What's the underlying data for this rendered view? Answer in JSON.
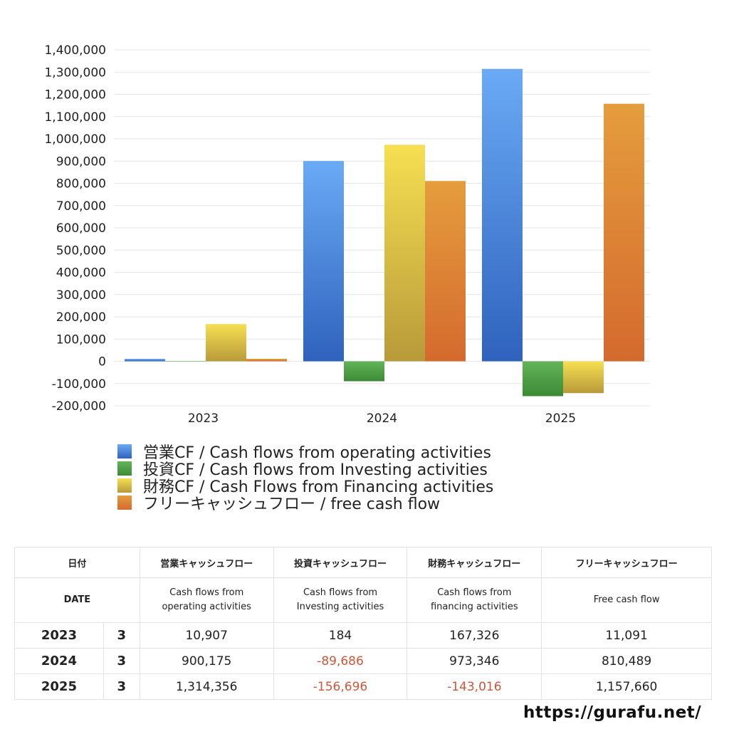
{
  "chart_data": {
    "type": "bar",
    "categories": [
      "2023",
      "2024",
      "2025"
    ],
    "ylim": [
      -200000,
      1400000
    ],
    "yticks": [
      "1,400,000",
      "1,300,000",
      "1,200,000",
      "1,100,000",
      "1,000,000",
      "900,000",
      "800,000",
      "700,000",
      "600,000",
      "500,000",
      "400,000",
      "300,000",
      "200,000",
      "100,000",
      "0",
      "-100,000",
      "-200,000"
    ],
    "series": [
      {
        "name": "営業CF / Cash flows from operating activities",
        "values": [
          10907,
          900175,
          1314356
        ],
        "color_top": "#6aaaf5",
        "color_bottom": "#2f62bd"
      },
      {
        "name": "投資CF / Cash flows from Investing activities",
        "values": [
          184,
          -89686,
          -156696
        ],
        "color_top": "#62b45a",
        "color_bottom": "#3d8a36"
      },
      {
        "name": "財務CF / Cash Flows from Financing activities",
        "values": [
          167326,
          973346,
          -143016
        ],
        "color_top": "#f7df52",
        "color_bottom": "#b89a3a"
      },
      {
        "name": "フリーキャッシュフロー / free cash flow",
        "values": [
          11091,
          810489,
          1157660
        ],
        "color_top": "#e59d3d",
        "color_bottom": "#d46a2e"
      }
    ],
    "grid": true,
    "legend": "bottom"
  },
  "table": {
    "header_jp": [
      "日付",
      "営業キャッシュフロー",
      "投資キャッシュフロー",
      "財務キャッシュフロー",
      "フリーキャッシュフロー"
    ],
    "header_en": [
      "DATE",
      "Cash flows from operating activities",
      "Cash flows from Investing activities",
      "Cash flows from financing activities",
      "Free cash flow"
    ],
    "rows": [
      {
        "year": "2023",
        "month": "3",
        "op": "10,907",
        "inv": "184",
        "fin": "167,326",
        "fcf": "11,091"
      },
      {
        "year": "2024",
        "month": "3",
        "op": "900,175",
        "inv": "-89,686",
        "fin": "973,346",
        "fcf": "810,489"
      },
      {
        "year": "2025",
        "month": "3",
        "op": "1,314,356",
        "inv": "-156,696",
        "fin": "-143,016",
        "fcf": "1,157,660"
      }
    ]
  },
  "footer": {
    "url": "https://gurafu.net/"
  }
}
